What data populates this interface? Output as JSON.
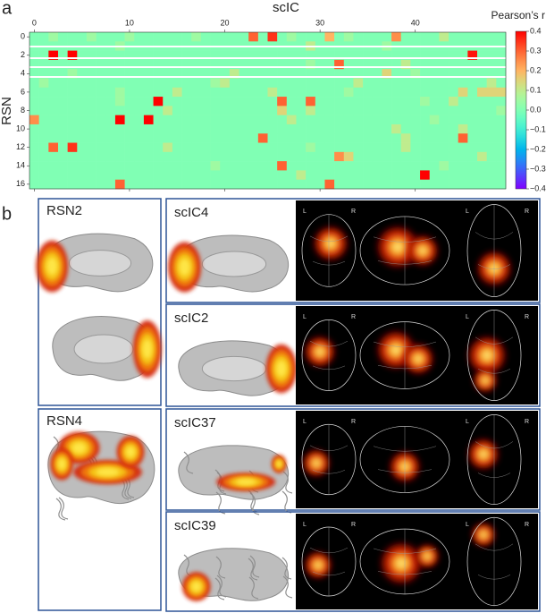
{
  "chart_data": {
    "type": "heatmap",
    "panel_label": "a",
    "xlabel": "scIC",
    "ylabel": "RSN",
    "xticks": [
      0,
      10,
      20,
      30,
      40
    ],
    "yticks": [
      0,
      2,
      4,
      6,
      8,
      10,
      12,
      14,
      16
    ],
    "colormap": "rainbow",
    "colorbar": {
      "label": "Pearson’s r",
      "lim": [
        -0.4,
        0.4
      ],
      "ticks": [
        0.4,
        0.3,
        0.2,
        0.1,
        {
          "value": 0,
          "label": "0.0"
        },
        {
          "value": -0.1,
          "label": "−0.1"
        },
        {
          "value": -0.2,
          "label": "−0.2"
        },
        {
          "value": -0.3,
          "label": "−0.3"
        },
        {
          "value": -0.4,
          "label": "−0.4"
        }
      ]
    },
    "values": [
      [
        0,
        0,
        0.05,
        0,
        0,
        0,
        0.05,
        0,
        0,
        0,
        0.05,
        0,
        0,
        0,
        0,
        0,
        0,
        0.05,
        0,
        0,
        0,
        0,
        0,
        0.3,
        0,
        0.35,
        0,
        0.05,
        0,
        0,
        0,
        0.2,
        0,
        0.05,
        0,
        0,
        0,
        0,
        0.25,
        0,
        0,
        0,
        0,
        0.1,
        0,
        0,
        0,
        0,
        0,
        0
      ],
      [
        0,
        0,
        0,
        0,
        0,
        0,
        0,
        0,
        0,
        0.05,
        0,
        0,
        0,
        0,
        0,
        0,
        0,
        0,
        0,
        0,
        0,
        0,
        0,
        0,
        0,
        0,
        0,
        0,
        0,
        0.1,
        0,
        0,
        0,
        0,
        0,
        0,
        0,
        0.05,
        0,
        0,
        0,
        0,
        0,
        0,
        0,
        0,
        0,
        0,
        0,
        0
      ],
      [
        0,
        0,
        0.4,
        0,
        0.4,
        0,
        0,
        0,
        0,
        0,
        0,
        0,
        0,
        0,
        0,
        0,
        0,
        0,
        0,
        0,
        0,
        0,
        0,
        0,
        0,
        0,
        0,
        0,
        0,
        0,
        0,
        0,
        0,
        0,
        0,
        0,
        0,
        0,
        0,
        0,
        0,
        0,
        0,
        0,
        0,
        0,
        0.38,
        0,
        0,
        0
      ],
      [
        0,
        0,
        0,
        0,
        0,
        0,
        0,
        0,
        0,
        0,
        0,
        0,
        0,
        0,
        0,
        0,
        0,
        0,
        0,
        0,
        0,
        0,
        0,
        0,
        0,
        0,
        0,
        0,
        0,
        0.05,
        0,
        0,
        0.3,
        0,
        0,
        0,
        0,
        0,
        0,
        0.1,
        0,
        0,
        0,
        0,
        0,
        0,
        0,
        0,
        0,
        0
      ],
      [
        0,
        0,
        0,
        0,
        0.05,
        0,
        0,
        0,
        0,
        0,
        0,
        0,
        0,
        0,
        0,
        0,
        0,
        0,
        0,
        0,
        0,
        0.1,
        0,
        0,
        0,
        0,
        0,
        0,
        0,
        0,
        0,
        0,
        0,
        0,
        0,
        0,
        0,
        0.15,
        0,
        0,
        0.05,
        0,
        0,
        0,
        0,
        0,
        0,
        0,
        0,
        0
      ],
      [
        0,
        0.05,
        0,
        0,
        0,
        0,
        0,
        0,
        0,
        0,
        0,
        0,
        0,
        0,
        0,
        0,
        0,
        0,
        0,
        0.05,
        0.1,
        0,
        0,
        0,
        0,
        0,
        0,
        0,
        0,
        0,
        0,
        0,
        0,
        0,
        0.1,
        0,
        0,
        0,
        0,
        0,
        0,
        0,
        0,
        0,
        0,
        0,
        0,
        0,
        0.1,
        0
      ],
      [
        0,
        0,
        0,
        0,
        0,
        0,
        0,
        0,
        0,
        0.05,
        0,
        0,
        0,
        0,
        0,
        0.1,
        0,
        0,
        0,
        0,
        0,
        0,
        0,
        0,
        0,
        0.1,
        0,
        0,
        0,
        0,
        0,
        0,
        0,
        0.05,
        0,
        0,
        0,
        0,
        0,
        0,
        0,
        0,
        0,
        0,
        0,
        0.15,
        0,
        0.15,
        0.15,
        0.15
      ],
      [
        0,
        0,
        0,
        0,
        0,
        0,
        0,
        0,
        0,
        0.05,
        0,
        0,
        0,
        0.4,
        0,
        0,
        0,
        0,
        0,
        0,
        0,
        0,
        0,
        0,
        0,
        0,
        0.3,
        0,
        0,
        0.3,
        0,
        0,
        0,
        0,
        0,
        0,
        0,
        0,
        0,
        0,
        0,
        0.05,
        0,
        0,
        0.1,
        0,
        0,
        0,
        0,
        0
      ],
      [
        0,
        0,
        0,
        0,
        0,
        0,
        0,
        0,
        0,
        0,
        0,
        0,
        0,
        0,
        0.1,
        0,
        0,
        0,
        0,
        0,
        0,
        0,
        0,
        0,
        0,
        0,
        0.15,
        0,
        0,
        0.1,
        0,
        0,
        0,
        0,
        0,
        0,
        0,
        0,
        0,
        0,
        0,
        0,
        0,
        0,
        0,
        0,
        0,
        0,
        0,
        0.05
      ],
      [
        0.25,
        0,
        0,
        0,
        0,
        0,
        0,
        0,
        0,
        0.4,
        0,
        0,
        0.4,
        0,
        0,
        0,
        0,
        0,
        0,
        0,
        0,
        0,
        0,
        0,
        0,
        0,
        0,
        0.1,
        0,
        0,
        0,
        0,
        0,
        0,
        0,
        0,
        0,
        0,
        0,
        0,
        0,
        0,
        0.05,
        0,
        0,
        0,
        0,
        0,
        0,
        0
      ],
      [
        0,
        0,
        0,
        0,
        0,
        0,
        0,
        0,
        0,
        0,
        0,
        0,
        0,
        0,
        0,
        0,
        0,
        0,
        0,
        0,
        0,
        0,
        0,
        0,
        0,
        0,
        0,
        0,
        0,
        0,
        0,
        0,
        0,
        0,
        0,
        0,
        0,
        0,
        0.1,
        0,
        0,
        0,
        0,
        0,
        0,
        0.1,
        0,
        0,
        0,
        0
      ],
      [
        0,
        0,
        0,
        0,
        0,
        0,
        0,
        0,
        0,
        0,
        0,
        0,
        0,
        0,
        0,
        0,
        0,
        0,
        0,
        0,
        0,
        0,
        0,
        0,
        0.3,
        0,
        0,
        0,
        0,
        0,
        0,
        0,
        0,
        0,
        0,
        0,
        0,
        0,
        0,
        0.1,
        0,
        0,
        0,
        0,
        0,
        0.3,
        0,
        0,
        0,
        0
      ],
      [
        0,
        0,
        0.3,
        0,
        0.35,
        0,
        0,
        0,
        0,
        0,
        0,
        0,
        0,
        0,
        0.1,
        0,
        0,
        0,
        0,
        0,
        0,
        0,
        0,
        0,
        0,
        0,
        0,
        0,
        0,
        0.05,
        0,
        0,
        0,
        0,
        0,
        0,
        0,
        0,
        0,
        0.1,
        0,
        0,
        0,
        0,
        0,
        0,
        0,
        0,
        0,
        0
      ],
      [
        0,
        0,
        0,
        0,
        0,
        0,
        0,
        0,
        0,
        0,
        0,
        0,
        0,
        0,
        0,
        0,
        0,
        0,
        0,
        0,
        0,
        0,
        0,
        0,
        0,
        0,
        0,
        0,
        0,
        0,
        0,
        0,
        0.25,
        0.15,
        0,
        0,
        0,
        0,
        0,
        0,
        0,
        0,
        0,
        0,
        0,
        0,
        0,
        0.1,
        0,
        0
      ],
      [
        0,
        0,
        0,
        0,
        0,
        0,
        0,
        0,
        0,
        0,
        0,
        0,
        0,
        0,
        0,
        0,
        0,
        0,
        0,
        0.05,
        0,
        0,
        0,
        0,
        0,
        0,
        0.3,
        0,
        0,
        0,
        0,
        0,
        0,
        0,
        0,
        0,
        0,
        0,
        0,
        0,
        0,
        0,
        0,
        0.05,
        0,
        0,
        0,
        0,
        0,
        0
      ],
      [
        0,
        0,
        0,
        0,
        0,
        0,
        0,
        0,
        0,
        0,
        0,
        0,
        0,
        0,
        0,
        0,
        0,
        0,
        0,
        0,
        0,
        0,
        0,
        0,
        0,
        0,
        0,
        0,
        0.1,
        0,
        0,
        0,
        0,
        0,
        0,
        0,
        0,
        0,
        0,
        0,
        0,
        0.4,
        0,
        0,
        0,
        0,
        0,
        0,
        0,
        0
      ],
      [
        0,
        0,
        0,
        0,
        0,
        0,
        0,
        0,
        0,
        0.3,
        0,
        0,
        0,
        0,
        0,
        0,
        0,
        0,
        0,
        0,
        0,
        0,
        0,
        0,
        0,
        0,
        0,
        0,
        0,
        0,
        0,
        0.3,
        0,
        0,
        0,
        0,
        0,
        0,
        0,
        0,
        0,
        0,
        0,
        0,
        0,
        0,
        0,
        0,
        0,
        0
      ]
    ]
  },
  "panel_b": {
    "label": "b",
    "orientation": {
      "left": "L",
      "right": "R"
    },
    "groups": [
      {
        "rsn": "RSN2",
        "components": [
          "scIC4",
          "scIC2"
        ]
      },
      {
        "rsn": "RSN4",
        "components": [
          "scIC37",
          "scIC39"
        ]
      }
    ]
  }
}
